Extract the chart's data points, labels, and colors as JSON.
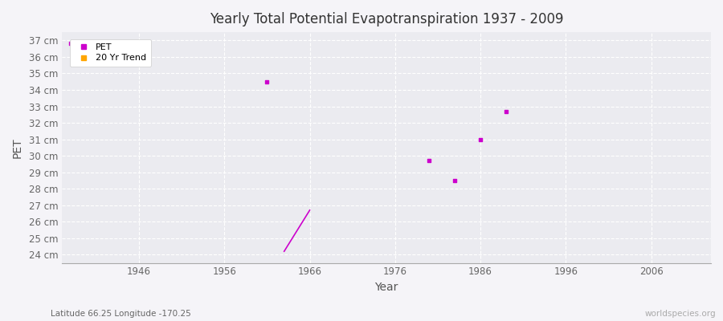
{
  "title": "Yearly Total Potential Evapotranspiration 1937 - 2009",
  "xlabel": "Year",
  "ylabel": "PET",
  "subtitle": "Latitude 66.25 Longitude -170.25",
  "watermark": "worldspecies.org",
  "background_color": "#f5f4f8",
  "plot_bg_color": "#ebebf0",
  "ylim": [
    23.5,
    37.5
  ],
  "xlim": [
    1937,
    2013
  ],
  "yticks": [
    24,
    25,
    26,
    27,
    28,
    29,
    30,
    31,
    32,
    33,
    34,
    35,
    36,
    37
  ],
  "xticks": [
    1946,
    1956,
    1966,
    1976,
    1986,
    1996,
    2006
  ],
  "pet_color": "#cc00cc",
  "trend_color": "#ffa500",
  "pet_points": [
    [
      1938,
      36.8
    ],
    [
      1961,
      34.5
    ],
    [
      1980,
      29.7
    ],
    [
      1983,
      28.5
    ],
    [
      1986,
      31.0
    ],
    [
      1989,
      32.7
    ]
  ],
  "trend_line": [
    [
      1963,
      24.2
    ],
    [
      1966,
      26.7
    ]
  ]
}
